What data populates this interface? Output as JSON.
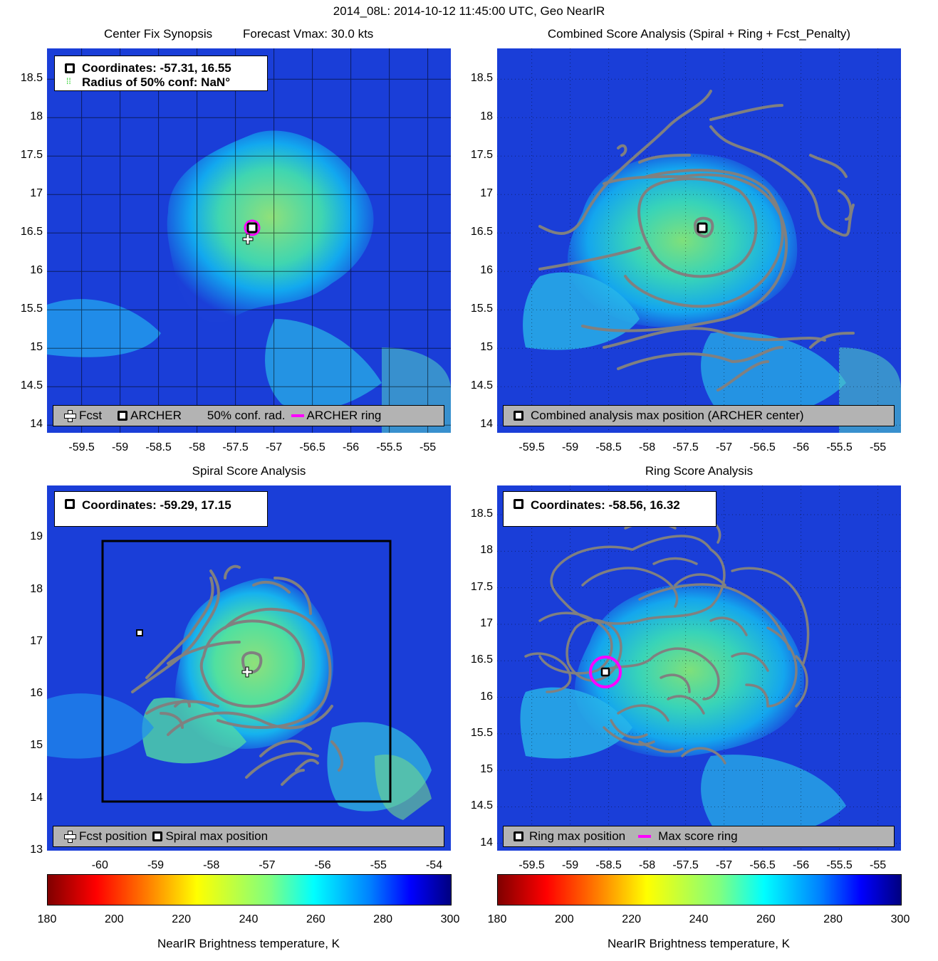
{
  "header": {
    "title": "2014_08L: 2014-10-12 11:45:00 UTC, Geo NearIR"
  },
  "panels": {
    "tl": {
      "title": "Center Fix Synopsis",
      "subtitle": "Forecast Vmax: 30.0 kts",
      "legend_top": {
        "line1": "Coordinates: -57.31, 16.55",
        "line2": "Radius of 50% conf: NaN°"
      },
      "legend_bottom": {
        "fcst": "Fcst",
        "archer": "ARCHER",
        "conf": "50% conf. rad.",
        "ring": "ARCHER ring"
      }
    },
    "tr": {
      "title": "Combined Score Analysis (Spiral + Ring + Fcst_Penalty)",
      "legend_bottom": {
        "label": "Combined analysis max position (ARCHER center)"
      }
    },
    "bl": {
      "title": "Spiral Score Analysis",
      "legend_top": {
        "line1": "Coordinates: -59.29, 17.15"
      },
      "legend_bottom": {
        "fcst": "Fcst position",
        "spiral": "Spiral max position"
      }
    },
    "br": {
      "title": "Ring Score Analysis",
      "legend_top": {
        "line1": "Coordinates: -58.56, 16.32"
      },
      "legend_bottom": {
        "ring": "Ring max position",
        "score": "Max score ring"
      }
    }
  },
  "colorbar": {
    "ticks": [
      "180",
      "200",
      "220",
      "240",
      "260",
      "280",
      "300"
    ],
    "label": "NearIR Brightness temperature, K"
  },
  "chart_data": [
    {
      "type": "heatmap",
      "title": "Center Fix Synopsis",
      "xlabel": "",
      "ylabel": "",
      "xlim": [
        -59.95,
        -54.7
      ],
      "ylim": [
        13.9,
        18.9
      ],
      "xticks": [
        "-59.5",
        "-59",
        "-58.5",
        "-58",
        "-57.5",
        "-57",
        "-56.5",
        "-56",
        "-55.5",
        "-55"
      ],
      "yticks": [
        "14",
        "14.5",
        "15",
        "15.5",
        "16",
        "16.5",
        "17",
        "17.5",
        "18",
        "18.5"
      ],
      "archer_center": [
        -57.31,
        16.55
      ],
      "fcst_position": [
        -57.3,
        16.4
      ],
      "grid": true
    },
    {
      "type": "heatmap",
      "title": "Combined Score Analysis (Spiral + Ring + Fcst_Penalty)",
      "xlim": [
        -59.95,
        -54.7
      ],
      "ylim": [
        13.9,
        18.9
      ],
      "xticks": [
        "-59.5",
        "-59",
        "-58.5",
        "-58",
        "-57.5",
        "-57",
        "-56.5",
        "-56",
        "-55.5",
        "-55"
      ],
      "yticks": [
        "14",
        "14.5",
        "15",
        "15.5",
        "16",
        "16.5",
        "17",
        "17.5",
        "18",
        "18.5"
      ],
      "max_position": [
        -57.31,
        16.55
      ],
      "grid": true
    },
    {
      "type": "heatmap",
      "title": "Spiral Score Analysis",
      "xlim": [
        -60.95,
        -53.7
      ],
      "ylim": [
        13.0,
        20.0
      ],
      "xticks": [
        "-60",
        "-59",
        "-58",
        "-57",
        "-56",
        "-55",
        "-54"
      ],
      "yticks": [
        "13",
        "14",
        "15",
        "16",
        "17",
        "18",
        "19"
      ],
      "spiral_max": [
        -59.29,
        17.15
      ],
      "fcst_position": [
        -57.3,
        16.4
      ],
      "search_box": {
        "x": [
          -59.9,
          -55.0
        ],
        "y": [
          13.9,
          18.9
        ]
      }
    },
    {
      "type": "heatmap",
      "title": "Ring Score Analysis",
      "xlim": [
        -59.95,
        -54.7
      ],
      "ylim": [
        13.9,
        18.9
      ],
      "xticks": [
        "-59.5",
        "-59",
        "-58.5",
        "-58",
        "-57.5",
        "-57",
        "-56.5",
        "-56",
        "-55.5",
        "-55"
      ],
      "yticks": [
        "14",
        "14.5",
        "15",
        "15.5",
        "16",
        "16.5",
        "17",
        "17.5",
        "18",
        "18.5"
      ],
      "ring_max": [
        -58.56,
        16.32
      ],
      "grid": true
    }
  ]
}
